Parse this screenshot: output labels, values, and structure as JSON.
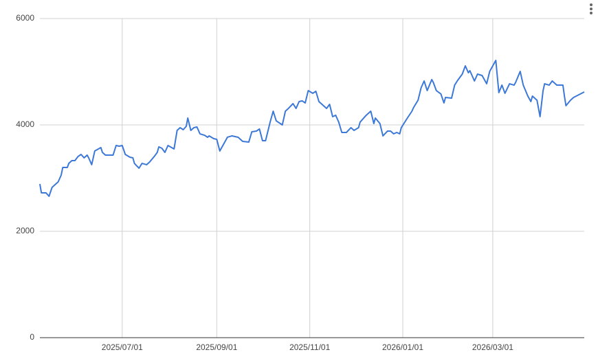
{
  "chart_data": {
    "type": "line",
    "color": "#3c78d8",
    "grid": true,
    "xlim": [
      "2025/05/08",
      "2026/04/30"
    ],
    "xticks": [
      "2025/07/01",
      "2025/09/01",
      "2025/11/01",
      "2026/01/01",
      "2026/03/01"
    ],
    "ylim": [
      0,
      6000
    ],
    "yticks": [
      0,
      2000,
      4000,
      6000
    ],
    "x": [
      "2025/05/08",
      "2025/05/09",
      "2025/05/12",
      "2025/05/14",
      "2025/05/16",
      "2025/05/20",
      "2025/05/22",
      "2025/05/23",
      "2025/05/26",
      "2025/05/27",
      "2025/05/29",
      "2025/05/31",
      "2025/06/02",
      "2025/06/04",
      "2025/06/06",
      "2025/06/08",
      "2025/06/09",
      "2025/06/11",
      "2025/06/13",
      "2025/06/17",
      "2025/06/18",
      "2025/06/20",
      "2025/06/24",
      "2025/06/25",
      "2025/06/27",
      "2025/06/29",
      "2025/07/01",
      "2025/07/03",
      "2025/07/06",
      "2025/07/08",
      "2025/07/09",
      "2025/07/12",
      "2025/07/14",
      "2025/07/17",
      "2025/07/19",
      "2025/07/22",
      "2025/07/24",
      "2025/07/25",
      "2025/07/27",
      "2025/07/29",
      "2025/07/31",
      "2025/08/04",
      "2025/08/06",
      "2025/08/08",
      "2025/08/10",
      "2025/08/12",
      "2025/08/13",
      "2025/08/15",
      "2025/08/17",
      "2025/08/19",
      "2025/08/21",
      "2025/08/24",
      "2025/08/26",
      "2025/08/27",
      "2025/08/30",
      "2025/09/01",
      "2025/09/03",
      "2025/09/05",
      "2025/09/08",
      "2025/09/11",
      "2025/09/15",
      "2025/09/18",
      "2025/09/22",
      "2025/09/24",
      "2025/09/27",
      "2025/09/29",
      "2025/10/01",
      "2025/10/03",
      "2025/10/06",
      "2025/10/08",
      "2025/10/10",
      "2025/10/14",
      "2025/10/16",
      "2025/10/18",
      "2025/10/21",
      "2025/10/23",
      "2025/10/25",
      "2025/10/27",
      "2025/10/29",
      "2025/10/31",
      "2025/11/03",
      "2025/11/05",
      "2025/11/07",
      "2025/11/09",
      "2025/11/12",
      "2025/11/14",
      "2025/11/16",
      "2025/11/18",
      "2025/11/20",
      "2025/11/22",
      "2025/11/25",
      "2025/11/28",
      "2025/11/30",
      "2025/12/03",
      "2025/12/04",
      "2025/12/08",
      "2025/12/11",
      "2025/12/13",
      "2025/12/14",
      "2025/12/17",
      "2025/12/19",
      "2025/12/22",
      "2025/12/24",
      "2025/12/26",
      "2025/12/28",
      "2025/12/30",
      "2025/12/31",
      "2026/01/04",
      "2026/01/07",
      "2026/01/08",
      "2026/01/11",
      "2026/01/13",
      "2026/01/15",
      "2026/01/17",
      "2026/01/20",
      "2026/01/21",
      "2026/01/23",
      "2026/01/26",
      "2026/01/28",
      "2026/01/29",
      "2026/02/02",
      "2026/02/04",
      "2026/02/06",
      "2026/02/09",
      "2026/02/11",
      "2026/02/13",
      "2026/02/14",
      "2026/02/17",
      "2026/02/19",
      "2026/02/22",
      "2026/02/25",
      "2026/02/27",
      "2026/03/03",
      "2026/03/05",
      "2026/03/07",
      "2026/03/09",
      "2026/03/12",
      "2026/03/15",
      "2026/03/16",
      "2026/03/19",
      "2026/03/21",
      "2026/03/24",
      "2026/03/26",
      "2026/03/27",
      "2026/03/30",
      "2026/04/01",
      "2026/04/03",
      "2026/04/04",
      "2026/04/07",
      "2026/04/09",
      "2026/04/12",
      "2026/04/16",
      "2026/04/17",
      "2026/04/18",
      "2026/04/21",
      "2026/04/23",
      "2026/04/30"
    ],
    "values": [
      2890,
      2723,
      2723,
      2658,
      2826,
      2929,
      3058,
      3200,
      3200,
      3277,
      3329,
      3329,
      3406,
      3445,
      3381,
      3432,
      3381,
      3252,
      3510,
      3574,
      3484,
      3432,
      3432,
      3432,
      3613,
      3600,
      3613,
      3445,
      3394,
      3381,
      3277,
      3187,
      3277,
      3252,
      3303,
      3406,
      3484,
      3587,
      3561,
      3484,
      3613,
      3548,
      3897,
      3948,
      3910,
      3974,
      4129,
      3897,
      3948,
      3961,
      3832,
      3806,
      3768,
      3794,
      3742,
      3729,
      3510,
      3613,
      3768,
      3794,
      3768,
      3690,
      3677,
      3871,
      3884,
      3923,
      3703,
      3703,
      4052,
      4258,
      4077,
      4000,
      4258,
      4310,
      4400,
      4310,
      4439,
      4452,
      4413,
      4645,
      4594,
      4632,
      4439,
      4387,
      4310,
      4387,
      4155,
      4181,
      4052,
      3858,
      3858,
      3948,
      3897,
      3948,
      4052,
      4181,
      4258,
      4026,
      4129,
      4026,
      3794,
      3884,
      3884,
      3832,
      3858,
      3832,
      3948,
      4129,
      4258,
      4323,
      4465,
      4697,
      4826,
      4645,
      4852,
      4800,
      4645,
      4581,
      4413,
      4516,
      4503,
      4748,
      4839,
      4955,
      5110,
      4981,
      5019,
      4826,
      4955,
      4929,
      4774,
      5006,
      5213,
      4606,
      4748,
      4594,
      4774,
      4748,
      4800,
      5006,
      4748,
      4542,
      4439,
      4542,
      4465,
      4155,
      4645,
      4774,
      4748,
      4826,
      4748,
      4748,
      4542,
      4361,
      4465,
      4516,
      4619
    ]
  }
}
